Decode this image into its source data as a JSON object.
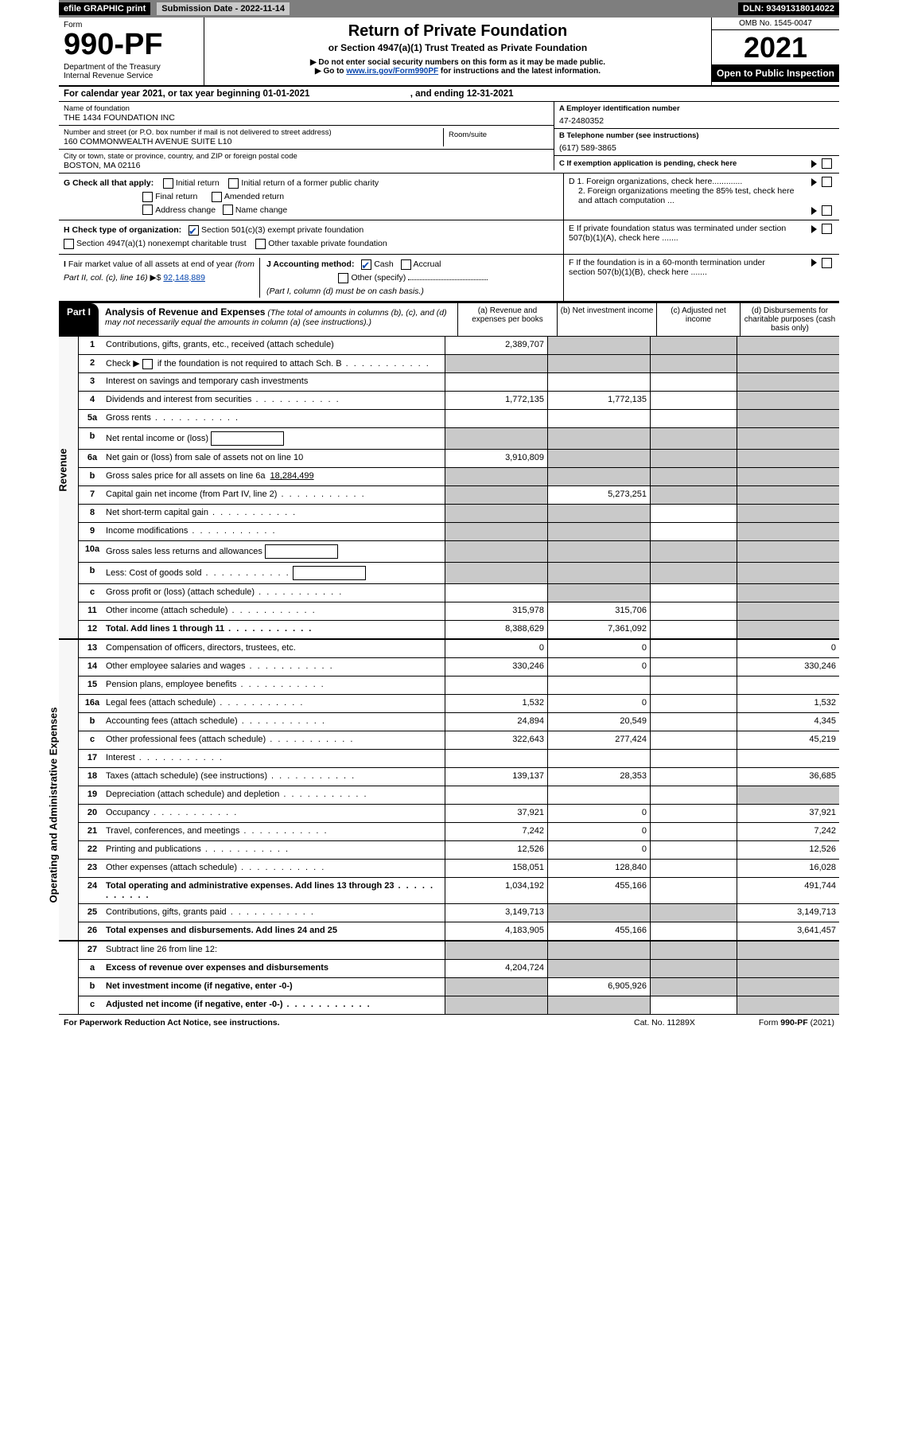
{
  "topbar": {
    "efile": "efile GRAPHIC print",
    "subm": "Submission Date - 2022-11-14",
    "dln": "DLN: 93491318014022"
  },
  "hdr": {
    "form": "Form",
    "num": "990-PF",
    "dept": "Department of the Treasury\nInternal Revenue Service",
    "title": "Return of Private Foundation",
    "sub": "or Section 4947(a)(1) Trust Treated as Private Foundation",
    "note1": "▶ Do not enter social security numbers on this form as it may be made public.",
    "note2_pre": "▶ Go to ",
    "note2_link": "www.irs.gov/Form990PF",
    "note2_post": " for instructions and the latest information.",
    "omb": "OMB No. 1545-0047",
    "year": "2021",
    "open": "Open to Public Inspection"
  },
  "cal": {
    "pre": "For calendar year 2021, or tax year beginning ",
    "begin": "01-01-2021",
    "mid": ", and ending ",
    "end": "12-31-2021"
  },
  "entity": {
    "name_lab": "Name of foundation",
    "name": "THE 1434 FOUNDATION INC",
    "addr_lab": "Number and street (or P.O. box number if mail is not delivered to street address)",
    "addr": "160 COMMONWEALTH AVENUE SUITE L10",
    "room_lab": "Room/suite",
    "room": "",
    "city_lab": "City or town, state or province, country, and ZIP or foreign postal code",
    "city": "BOSTON, MA  02116",
    "ein_lab": "A Employer identification number",
    "ein": "47-2480352",
    "tel_lab": "B Telephone number (see instructions)",
    "tel": "(617) 589-3865",
    "c_lab": "C If exemption application is pending, check here"
  },
  "g": {
    "lead": "G Check all that apply:",
    "o1": "Initial return",
    "o2": "Initial return of a former public charity",
    "o3": "Final return",
    "o4": "Amended return",
    "o5": "Address change",
    "o6": "Name change"
  },
  "h": {
    "lead": "H Check type of organization:",
    "o1": "Section 501(c)(3) exempt private foundation",
    "o2": "Section 4947(a)(1) nonexempt charitable trust",
    "o3": "Other taxable private foundation"
  },
  "i": {
    "lead": "I Fair market value of all assets at end of year (from Part II, col. (c), line 16) ▶$ ",
    "val": "92,148,889"
  },
  "j": {
    "lead": "J Accounting method:",
    "o1": "Cash",
    "o2": "Accrual",
    "o3": "Other (specify)",
    "note": "(Part I, column (d) must be on cash basis.)"
  },
  "d": {
    "d1": "D 1. Foreign organizations, check here.............",
    "d2": "2. Foreign organizations meeting the 85% test, check here and attach computation ..."
  },
  "e": "E  If private foundation status was terminated under section 507(b)(1)(A), check here .......",
  "f": "F  If the foundation is in a 60-month termination under section 507(b)(1)(B), check here .......",
  "part1": {
    "label": "Part I",
    "title": "Analysis of Revenue and Expenses",
    "sub": " (The total of amounts in columns (b), (c), and (d) may not necessarily equal the amounts in column (a) (see instructions).)",
    "col_a": "(a)   Revenue and expenses per books",
    "col_b": "(b)   Net investment income",
    "col_c": "(c)   Adjusted net income",
    "col_d": "(d)   Disbursements for charitable purposes (cash basis only)"
  },
  "vtabs": {
    "rev": "Revenue",
    "opex": "Operating and Administrative Expenses"
  },
  "lines": {
    "l1": {
      "n": "1",
      "d": "Contributions, gifts, grants, etc., received (attach schedule)",
      "a": "2,389,707"
    },
    "l2": {
      "n": "2",
      "d_pre": "Check ▶ ",
      "d_post": " if the foundation is not required to attach Sch. B"
    },
    "l3": {
      "n": "3",
      "d": "Interest on savings and temporary cash investments"
    },
    "l4": {
      "n": "4",
      "d": "Dividends and interest from securities",
      "a": "1,772,135",
      "b": "1,772,135"
    },
    "l5a": {
      "n": "5a",
      "d": "Gross rents"
    },
    "l5b": {
      "n": "b",
      "d": "Net rental income or (loss)"
    },
    "l6a": {
      "n": "6a",
      "d": "Net gain or (loss) from sale of assets not on line 10",
      "a": "3,910,809"
    },
    "l6b": {
      "n": "b",
      "d_pre": "Gross sales price for all assets on line 6a",
      "v": "18,284,499"
    },
    "l7": {
      "n": "7",
      "d": "Capital gain net income (from Part IV, line 2)",
      "b": "5,273,251"
    },
    "l8": {
      "n": "8",
      "d": "Net short-term capital gain"
    },
    "l9": {
      "n": "9",
      "d": "Income modifications"
    },
    "l10a": {
      "n": "10a",
      "d": "Gross sales less returns and allowances"
    },
    "l10b": {
      "n": "b",
      "d": "Less: Cost of goods sold"
    },
    "l10c": {
      "n": "c",
      "d": "Gross profit or (loss) (attach schedule)"
    },
    "l11": {
      "n": "11",
      "d": "Other income (attach schedule)",
      "a": "315,978",
      "b": "315,706"
    },
    "l12": {
      "n": "12",
      "d": "Total. Add lines 1 through 11",
      "a": "8,388,629",
      "b": "7,361,092"
    },
    "l13": {
      "n": "13",
      "d": "Compensation of officers, directors, trustees, etc.",
      "a": "0",
      "b": "0",
      "dd": "0"
    },
    "l14": {
      "n": "14",
      "d": "Other employee salaries and wages",
      "a": "330,246",
      "b": "0",
      "dd": "330,246"
    },
    "l15": {
      "n": "15",
      "d": "Pension plans, employee benefits"
    },
    "l16a": {
      "n": "16a",
      "d": "Legal fees (attach schedule)",
      "a": "1,532",
      "b": "0",
      "dd": "1,532"
    },
    "l16b": {
      "n": "b",
      "d": "Accounting fees (attach schedule)",
      "a": "24,894",
      "b": "20,549",
      "dd": "4,345"
    },
    "l16c": {
      "n": "c",
      "d": "Other professional fees (attach schedule)",
      "a": "322,643",
      "b": "277,424",
      "dd": "45,219"
    },
    "l17": {
      "n": "17",
      "d": "Interest"
    },
    "l18": {
      "n": "18",
      "d": "Taxes (attach schedule) (see instructions)",
      "a": "139,137",
      "b": "28,353",
      "dd": "36,685"
    },
    "l19": {
      "n": "19",
      "d": "Depreciation (attach schedule) and depletion"
    },
    "l20": {
      "n": "20",
      "d": "Occupancy",
      "a": "37,921",
      "b": "0",
      "dd": "37,921"
    },
    "l21": {
      "n": "21",
      "d": "Travel, conferences, and meetings",
      "a": "7,242",
      "b": "0",
      "dd": "7,242"
    },
    "l22": {
      "n": "22",
      "d": "Printing and publications",
      "a": "12,526",
      "b": "0",
      "dd": "12,526"
    },
    "l23": {
      "n": "23",
      "d": "Other expenses (attach schedule)",
      "a": "158,051",
      "b": "128,840",
      "dd": "16,028"
    },
    "l24": {
      "n": "24",
      "d": "Total operating and administrative expenses. Add lines 13 through 23",
      "a": "1,034,192",
      "b": "455,166",
      "dd": "491,744"
    },
    "l25": {
      "n": "25",
      "d": "Contributions, gifts, grants paid",
      "a": "3,149,713",
      "dd": "3,149,713"
    },
    "l26": {
      "n": "26",
      "d": "Total expenses and disbursements. Add lines 24 and 25",
      "a": "4,183,905",
      "b": "455,166",
      "dd": "3,641,457"
    },
    "l27": {
      "n": "27",
      "d": "Subtract line 26 from line 12:"
    },
    "l27a": {
      "n": "a",
      "d": "Excess of revenue over expenses and disbursements",
      "a": "4,204,724"
    },
    "l27b": {
      "n": "b",
      "d": "Net investment income (if negative, enter -0-)",
      "b": "6,905,926"
    },
    "l27c": {
      "n": "c",
      "d": "Adjusted net income (if negative, enter -0-)"
    }
  },
  "foot": {
    "l": "For Paperwork Reduction Act Notice, see instructions.",
    "m": "Cat. No. 11289X",
    "r": "Form 990-PF (2021)"
  }
}
